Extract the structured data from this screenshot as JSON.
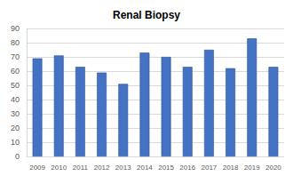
{
  "chart_data": {
    "type": "bar",
    "title": "Renal Biopsy",
    "categories": [
      "2009",
      "2010",
      "2011",
      "2012",
      "2013",
      "2014",
      "2015",
      "2016",
      "2017",
      "2018",
      "2019",
      "2020"
    ],
    "values": [
      69,
      71,
      63,
      59,
      51,
      73,
      70,
      63,
      75,
      62,
      83,
      63
    ],
    "color": "#4472c4",
    "ylim": [
      0,
      90
    ],
    "yticks": [
      0,
      10,
      20,
      30,
      40,
      50,
      60,
      70,
      80,
      90
    ],
    "grid": true
  }
}
